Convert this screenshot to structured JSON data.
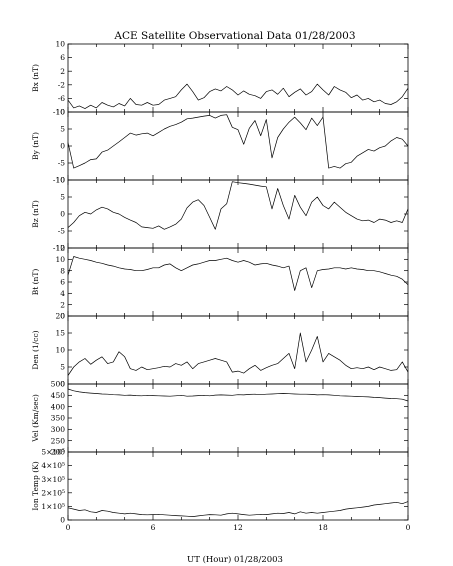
{
  "chart_data": {
    "type": "line",
    "title": "ACE Satellite Observational Data   01/28/2003",
    "xlabel": "UT (Hour)   01/28/2003",
    "x_ticks": [
      "0",
      "6",
      "12",
      "18",
      "0"
    ],
    "x_range": [
      0,
      24
    ],
    "x": [
      0,
      0.4,
      0.8,
      1.2,
      1.6,
      2,
      2.4,
      2.8,
      3.2,
      3.6,
      4,
      4.4,
      4.8,
      5.2,
      5.6,
      6,
      6.4,
      6.8,
      7.2,
      7.6,
      8,
      8.4,
      8.8,
      9.2,
      9.6,
      10,
      10.4,
      10.8,
      11.2,
      11.6,
      12,
      12.4,
      12.8,
      13.2,
      13.6,
      14,
      14.4,
      14.8,
      15.2,
      15.6,
      16,
      16.4,
      16.8,
      17.2,
      17.6,
      18,
      18.4,
      18.8,
      19.2,
      19.6,
      20,
      20.4,
      20.8,
      21.2,
      21.6,
      22,
      22.4,
      22.8,
      23.2,
      23.6,
      24
    ],
    "panels": [
      {
        "ylabel": "Bx (nT)",
        "ylim": [
          -10,
          10
        ],
        "yticks": [
          -10,
          -6,
          -2,
          2,
          6,
          10
        ],
        "ytick_labels": [
          "-10",
          "-6",
          "-2",
          "2",
          "6",
          "10"
        ],
        "series": [
          {
            "values": [
              -6.5,
              -8.8,
              -8.2,
              -9,
              -8,
              -8.8,
              -7.2,
              -8,
              -8.5,
              -7.5,
              -8.2,
              -6,
              -7.8,
              -8,
              -7.2,
              -8,
              -7.8,
              -6.5,
              -6,
              -5.5,
              -3.5,
              -1.8,
              -4,
              -6.5,
              -5.8,
              -4,
              -3.2,
              -3.8,
              -2.5,
              -3.5,
              -5,
              -3.8,
              -4.8,
              -5.2,
              -6,
              -4,
              -3.5,
              -4.8,
              -3,
              -5.5,
              -4.2,
              -3.2,
              -5,
              -4,
              -1.8,
              -3.5,
              -5,
              -2.5,
              -3.5,
              -4.2,
              -5.8,
              -5,
              -6.5,
              -6,
              -7,
              -6.5,
              -7.5,
              -7.8,
              -7,
              -5.5,
              -3
            ]
          }
        ]
      },
      {
        "ylabel": "By (nT)",
        "ylim": [
          -10,
          10
        ],
        "yticks": [
          -10,
          -5,
          0,
          5,
          10
        ],
        "ytick_labels": [
          "-10",
          "-5",
          "0",
          "5",
          "10"
        ],
        "series": [
          {
            "values": [
              1,
              -6.5,
              -5.8,
              -5,
              -4,
              -3.8,
              -1.8,
              -1.2,
              0,
              1.2,
              2.5,
              3.8,
              3.2,
              3.6,
              3.8,
              3,
              4,
              5,
              5.8,
              6.3,
              7,
              8,
              8.2,
              8.5,
              8.8,
              9,
              8.2,
              9,
              9.2,
              5.5,
              4.8,
              0.5,
              5.2,
              7.5,
              3,
              7.8,
              -3.5,
              2.5,
              5,
              7,
              8.5,
              6.8,
              4.8,
              8.2,
              6,
              8.5,
              -6.5,
              -6,
              -6.5,
              -5.2,
              -4.8,
              -3,
              -2,
              -1,
              -1.5,
              -0.5,
              0,
              1.5,
              2.5,
              2,
              0
            ]
          }
        ]
      },
      {
        "ylabel": "Bz (nT)",
        "ylim": [
          -10,
          10
        ],
        "yticks": [
          -10,
          -5,
          0,
          5,
          10
        ],
        "ytick_labels": [
          "-10",
          "-5",
          "0",
          "5",
          "10"
        ],
        "series": [
          {
            "values": [
              -4,
              -2.5,
              -0.5,
              0.5,
              0,
              1.2,
              2,
              1.5,
              0.5,
              0,
              -1,
              -1.8,
              -2.5,
              -3.8,
              -4,
              -4.2,
              -3.5,
              -4.5,
              -3.8,
              -3,
              -1.5,
              1.8,
              3.5,
              4.2,
              2.5,
              -1,
              -4.5,
              1.5,
              3,
              9.5,
              9.2,
              9,
              8.8,
              8.5,
              8.2,
              8,
              1.5,
              7.5,
              2.5,
              -1.5,
              5.5,
              2,
              -0.5,
              3.5,
              5,
              2.5,
              1.5,
              3.5,
              2,
              0.5,
              -0.5,
              -1.5,
              -2,
              -1.8,
              -2.5,
              -1.5,
              -1.8,
              -2.5,
              -2,
              -2.5,
              1.5
            ]
          }
        ]
      },
      {
        "ylabel": "Bt (nT)",
        "ylim": [
          0,
          12
        ],
        "yticks": [
          0,
          2,
          4,
          6,
          8,
          10,
          12
        ],
        "ytick_labels": [
          "0",
          "2",
          "4",
          "6",
          "8",
          "10",
          "12"
        ],
        "series": [
          {
            "values": [
              7.2,
              10.5,
              10.2,
              10,
              9.8,
              9.5,
              9.3,
              9,
              8.8,
              8.5,
              8.3,
              8.2,
              8,
              8,
              8.2,
              8.5,
              8.5,
              9,
              9.2,
              8.5,
              8,
              8.5,
              9,
              9.2,
              9.5,
              9.8,
              9.8,
              10,
              10.2,
              9.8,
              9.5,
              9.8,
              9.5,
              9,
              9.2,
              9.3,
              9,
              8.8,
              8.5,
              8.8,
              4.5,
              8,
              8.5,
              5,
              8,
              8.2,
              8.3,
              8.5,
              8.5,
              8.3,
              8.5,
              8.3,
              8.2,
              8,
              8,
              7.8,
              7.5,
              7.2,
              7,
              6.5,
              5.5
            ]
          }
        ]
      },
      {
        "ylabel": "Den (1/cc)",
        "ylim": [
          0,
          20
        ],
        "yticks": [
          0,
          5,
          10,
          15,
          20
        ],
        "ytick_labels": [
          "0",
          "5",
          "10",
          "15",
          "20"
        ],
        "series": [
          {
            "values": [
              2.5,
              5,
              6.5,
              7.5,
              5.8,
              7,
              8,
              6,
              6.5,
              9.5,
              8,
              4.5,
              4,
              5,
              4.2,
              4.5,
              4.8,
              5.2,
              5,
              6,
              5.5,
              6.5,
              4.5,
              6,
              6.5,
              7,
              7.5,
              7,
              6.5,
              3.5,
              3.8,
              3.2,
              4.5,
              5.5,
              4,
              4.8,
              5.5,
              6,
              7.5,
              9,
              4.5,
              15,
              6.5,
              10,
              14,
              6.5,
              9,
              8,
              7,
              5.5,
              4.5,
              4.8,
              4.5,
              5,
              4.2,
              5,
              4.5,
              4,
              4.2,
              6.5,
              3.5
            ]
          }
        ]
      },
      {
        "ylabel": "Vel (Km/sec)",
        "ylim": [
          200,
          500
        ],
        "yticks": [
          200,
          250,
          300,
          350,
          400,
          450,
          500
        ],
        "ytick_labels": [
          "200",
          "250",
          "300",
          "350",
          "400",
          "450",
          "500"
        ],
        "series": [
          {
            "values": [
              478,
              470,
              465,
              462,
              460,
              458,
              456,
              455,
              453,
              452,
              450,
              451,
              449,
              448,
              450,
              449,
              448,
              447,
              446,
              448,
              450,
              446,
              447,
              449,
              450,
              448,
              451,
              452,
              451,
              450,
              453,
              452,
              454,
              455,
              453,
              455,
              456,
              457,
              458,
              457,
              456,
              455,
              455,
              454,
              452,
              453,
              452,
              450,
              448,
              447,
              446,
              445,
              444,
              443,
              441,
              440,
              438,
              436,
              435,
              433,
              425
            ]
          }
        ]
      },
      {
        "ylabel": "Ion Temp (K)",
        "ylim": [
          0,
          500000
        ],
        "yticks": [
          0,
          100000,
          200000,
          300000,
          400000,
          500000
        ],
        "ytick_labels": [
          "0",
          "1×10⁵",
          "2×10⁵",
          "3×10⁵",
          "4×10⁵",
          "5×10⁵"
        ],
        "series": [
          {
            "values": [
              90000,
              80000,
              70000,
              75000,
              60000,
              55000,
              70000,
              65000,
              55000,
              50000,
              45000,
              50000,
              45000,
              40000,
              38000,
              40000,
              42000,
              38000,
              35000,
              32000,
              30000,
              28000,
              25000,
              30000,
              35000,
              40000,
              38000,
              35000,
              45000,
              50000,
              45000,
              40000,
              35000,
              38000,
              42000,
              40000,
              45000,
              50000,
              48000,
              55000,
              45000,
              60000,
              50000,
              55000,
              50000,
              55000,
              60000,
              65000,
              70000,
              80000,
              85000,
              90000,
              95000,
              100000,
              110000,
              115000,
              120000,
              125000,
              130000,
              120000,
              135000
            ]
          }
        ]
      }
    ]
  }
}
